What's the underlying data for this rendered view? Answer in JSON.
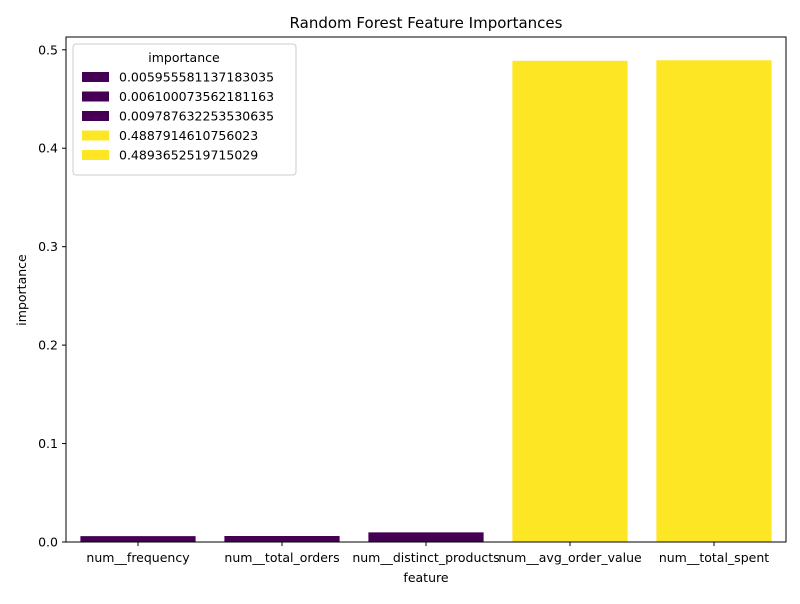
{
  "chart_data": {
    "type": "bar",
    "title": "Random Forest Feature Importances",
    "xlabel": "feature",
    "ylabel": "importance",
    "categories": [
      "num__frequency",
      "num__total_orders",
      "num__distinct_products",
      "num__avg_order_value",
      "num__total_spent"
    ],
    "values": [
      0.005955581137183035,
      0.006100073562181163,
      0.009787632253530635,
      0.4887914610756023,
      0.4893652519715029
    ],
    "bar_colors": [
      "#440154",
      "#440154",
      "#440154",
      "#fde725",
      "#fde725"
    ],
    "ylim": [
      0,
      0.513
    ],
    "yticks": [
      0.0,
      0.1,
      0.2,
      0.3,
      0.4,
      0.5
    ],
    "ytick_labels": [
      "0.0",
      "0.1",
      "0.2",
      "0.3",
      "0.4",
      "0.5"
    ],
    "grid": false,
    "legend": {
      "title": "importance",
      "placement": "top-left",
      "entries": [
        {
          "label": "0.005955581137183035",
          "color": "#440154"
        },
        {
          "label": "0.006100073562181163",
          "color": "#440154"
        },
        {
          "label": "0.009787632253530635",
          "color": "#440154"
        },
        {
          "label": "0.4887914610756023",
          "color": "#fde725"
        },
        {
          "label": "0.4893652519715029",
          "color": "#fde725"
        }
      ]
    }
  }
}
